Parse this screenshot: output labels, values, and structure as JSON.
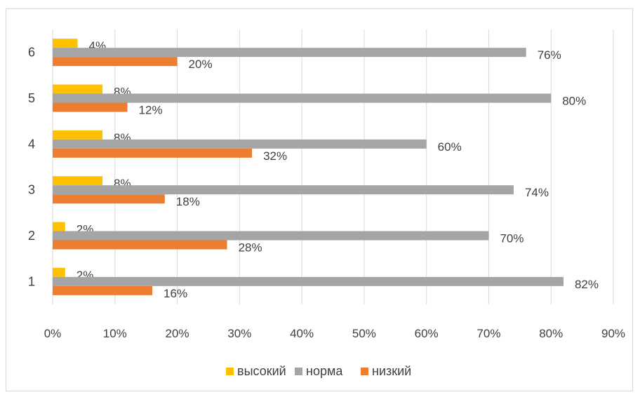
{
  "chart_data": {
    "type": "bar",
    "orientation": "horizontal",
    "categories": [
      "1",
      "2",
      "3",
      "4",
      "5",
      "6"
    ],
    "series": [
      {
        "name": "высокий",
        "color": "#FFC000",
        "values": [
          2,
          2,
          8,
          8,
          8,
          4
        ],
        "labels": [
          "2%",
          "2%",
          "8%",
          "8%",
          "8%",
          "4%"
        ]
      },
      {
        "name": "норма",
        "color": "#A5A5A5",
        "values": [
          82,
          70,
          74,
          60,
          80,
          76
        ],
        "labels": [
          "82%",
          "70%",
          "74%",
          "60%",
          "80%",
          "76%"
        ]
      },
      {
        "name": "низкий",
        "color": "#ED7D31",
        "values": [
          16,
          28,
          18,
          32,
          12,
          20
        ],
        "labels": [
          "16%",
          "28%",
          "18%",
          "32%",
          "12%",
          "20%"
        ]
      }
    ],
    "x_ticks": [
      "0%",
      "10%",
      "20%",
      "30%",
      "40%",
      "50%",
      "60%",
      "70%",
      "80%",
      "90%"
    ],
    "xlim": [
      0,
      90
    ],
    "unit": "%",
    "grid": "vertical",
    "legend": "bottom"
  }
}
